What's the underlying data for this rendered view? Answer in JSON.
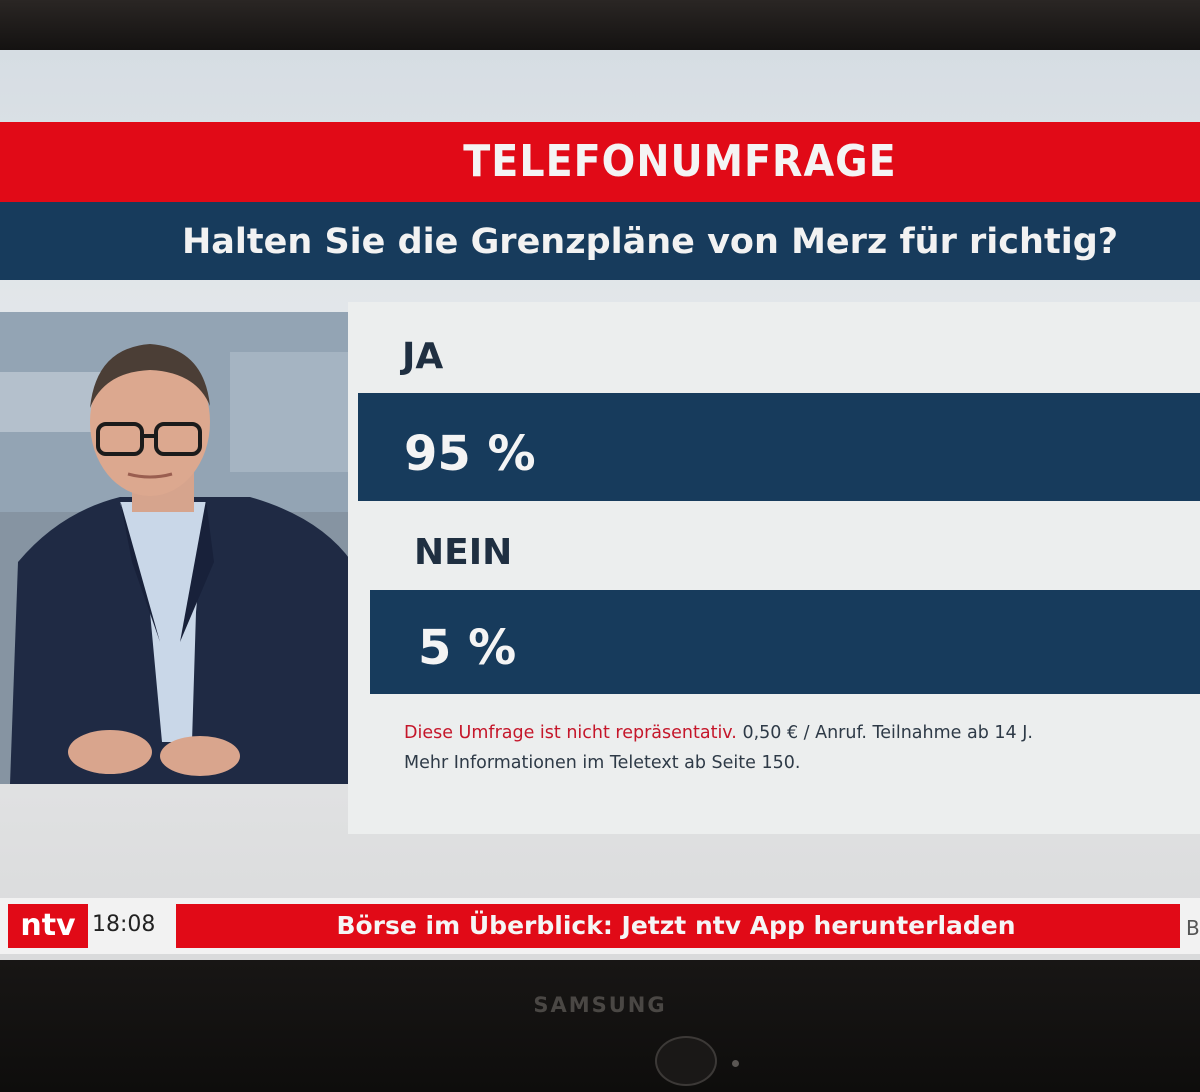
{
  "screen": {
    "title": "TELEFONUMFRAGE",
    "question": "Halten Sie die Grenzpläne von Merz für richtig?"
  },
  "results": {
    "options": [
      {
        "label": "JA",
        "value_text": "95 %",
        "value": 95
      },
      {
        "label": "NEIN",
        "value_text": "5 %",
        "value": 5
      }
    ]
  },
  "disclaimer": {
    "warning": "Diese Umfrage ist nicht repräsentativ.",
    "cost": " 0,50 € / Anruf. Teilnahme ab 14 J.",
    "more_info": "Mehr Informationen im Teletext ab Seite 150."
  },
  "ticker": {
    "channel": "ntv",
    "time": "18:08",
    "text": "Börse im Überblick: Jetzt ntv App herunterladen",
    "next_fragment": "B"
  },
  "tv": {
    "brand": "SAMSUNG"
  },
  "colors": {
    "brand_red": "#e10a17",
    "navy": "#173b5c",
    "panel": "#eceeee",
    "warning_text": "#c5162a"
  }
}
